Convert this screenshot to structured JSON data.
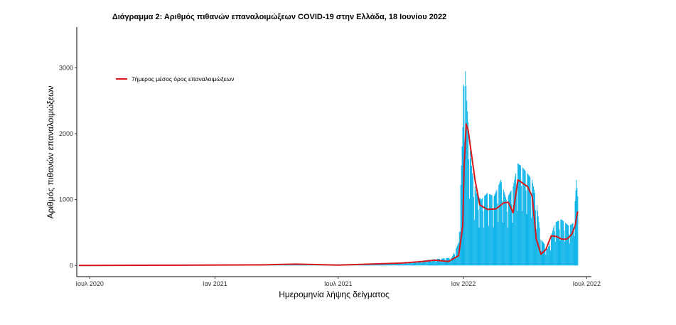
{
  "chart_data": {
    "type": "bar",
    "title": "Διάγραμμα 2: Αριθμός πιθανών επαναλοιμώξεων COVID-19 στην Ελλάδα, 18 Ιουνίου 2022",
    "xlabel": "Ημερομηνία λήψης δείγματος",
    "ylabel": "Αριθμός πιθανών επαναλοιμώξεων",
    "x_range": [
      "2020-06-12",
      "2022-07-08"
    ],
    "ylim": [
      -170,
      3620
    ],
    "x_ticks": [
      {
        "date": "2020-07-01",
        "label": "Ιουλ 2020"
      },
      {
        "date": "2021-01-01",
        "label": "Ιαν 2021"
      },
      {
        "date": "2021-07-01",
        "label": "Ιουλ 2021"
      },
      {
        "date": "2022-01-01",
        "label": "Ιαν 2022"
      },
      {
        "date": "2022-07-01",
        "label": "Ιουλ 2022"
      }
    ],
    "y_ticks": [
      0,
      1000,
      2000,
      3000
    ],
    "grid": false,
    "legend": {
      "position": "top-left",
      "entries": [
        "7ήμερος μέσος όρος επαναλοιμώξεων"
      ]
    },
    "series": [
      {
        "type": "bar",
        "color": "#00b0e8",
        "x": [
          "2020-07-01",
          "2021-05-01",
          "2021-08-15",
          "2021-10-15",
          "2021-11-15",
          "2021-12-15",
          "2021-12-25",
          "2021-12-31",
          "2022-01-02",
          "2022-01-06",
          "2022-01-10",
          "2022-01-14",
          "2022-01-20",
          "2022-01-27",
          "2022-02-05",
          "2022-02-15",
          "2022-02-25",
          "2022-03-05",
          "2022-03-15",
          "2022-03-22",
          "2022-03-28",
          "2022-04-05",
          "2022-04-12",
          "2022-04-18",
          "2022-04-25",
          "2022-05-05",
          "2022-05-15",
          "2022-05-25",
          "2022-06-05",
          "2022-06-12",
          "2022-06-16",
          "2022-06-18"
        ],
        "y": [
          2,
          10,
          25,
          50,
          90,
          120,
          350,
          2100,
          3400,
          2500,
          1850,
          1400,
          1100,
          1000,
          1100,
          1050,
          1300,
          1000,
          1200,
          1550,
          1500,
          1400,
          1300,
          1000,
          400,
          250,
          650,
          700,
          600,
          650,
          1300,
          1050
        ]
      },
      {
        "type": "line",
        "name": "7ήμερος μέσος όρος επαναλοιμώξεων",
        "color": "#d7191c",
        "x": [
          "2020-06-15",
          "2020-09-15",
          "2020-12-15",
          "2021-03-15",
          "2021-04-30",
          "2021-07-01",
          "2021-08-15",
          "2021-10-01",
          "2021-11-01",
          "2021-11-20",
          "2021-12-10",
          "2021-12-25",
          "2021-12-31",
          "2022-01-02",
          "2022-01-05",
          "2022-01-08",
          "2022-01-12",
          "2022-01-18",
          "2022-01-25",
          "2022-02-05",
          "2022-02-18",
          "2022-03-01",
          "2022-03-08",
          "2022-03-15",
          "2022-03-22",
          "2022-03-29",
          "2022-04-05",
          "2022-04-12",
          "2022-04-18",
          "2022-04-25",
          "2022-05-02",
          "2022-05-10",
          "2022-05-18",
          "2022-05-25",
          "2022-06-02",
          "2022-06-09",
          "2022-06-14",
          "2022-06-17",
          "2022-06-18"
        ],
        "y": [
          0,
          3,
          5,
          10,
          20,
          5,
          20,
          35,
          60,
          80,
          60,
          150,
          600,
          1500,
          2150,
          2050,
          1750,
          1300,
          920,
          850,
          860,
          950,
          960,
          800,
          1300,
          1250,
          1200,
          1050,
          400,
          170,
          240,
          450,
          440,
          400,
          400,
          470,
          600,
          780,
          820
        ]
      }
    ]
  }
}
